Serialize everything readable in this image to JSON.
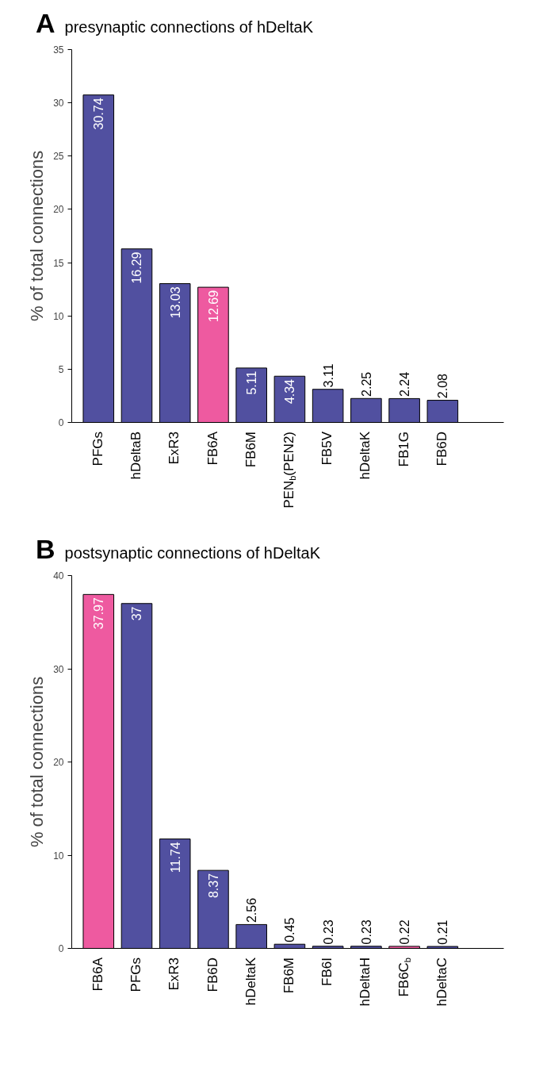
{
  "chart_data": [
    {
      "type": "bar",
      "title": "presynaptic connections of hDeltaK",
      "annotations": [
        "A"
      ],
      "ylabel": "% of total connections",
      "categories": [
        "PFGs",
        "hDeltaB",
        "ExR3",
        "FB6A",
        "FB6M",
        "PEN$_{b}$(PEN2)",
        "FB5V",
        "hDeltaK",
        "FB1G",
        "FB6D"
      ],
      "values": [
        30.74,
        16.29,
        13.03,
        12.69,
        5.11,
        4.34,
        3.11,
        2.25,
        2.24,
        2.08
      ],
      "colors": [
        "#5150a0",
        "#5150a0",
        "#5150a0",
        "#ee5aa0",
        "#5150a0",
        "#5150a0",
        "#5150a0",
        "#5150a0",
        "#5150a0",
        "#5150a0"
      ],
      "ylim": [
        0,
        35
      ],
      "yticks": [
        0,
        5,
        10,
        15,
        20,
        25,
        30,
        35
      ],
      "data_labels": true,
      "grid": false
    },
    {
      "type": "bar",
      "title": "postsynaptic connections of hDeltaK",
      "annotations": [
        "B"
      ],
      "ylabel": "% of total connections",
      "categories": [
        "FB6A",
        "PFGs",
        "ExR3",
        "FB6D",
        "hDeltaK",
        "FB6M",
        "FB6I",
        "hDeltaH",
        "FB6C$_{b}$",
        "hDeltaC"
      ],
      "values": [
        37.97,
        37,
        11.74,
        8.37,
        2.56,
        0.45,
        0.23,
        0.23,
        0.22,
        0.21
      ],
      "colors": [
        "#ee5aa0",
        "#5150a0",
        "#5150a0",
        "#5150a0",
        "#5150a0",
        "#5150a0",
        "#5150a0",
        "#5150a0",
        "#ee5aa0",
        "#5150a0"
      ],
      "ylim": [
        0,
        40
      ],
      "yticks": [
        0,
        10,
        20,
        30,
        40
      ],
      "data_labels": true,
      "grid": false
    }
  ]
}
